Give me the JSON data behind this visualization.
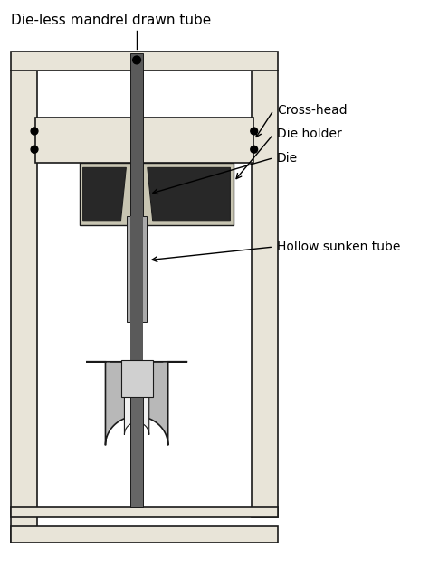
{
  "title": "Die-less mandrel drawn tube",
  "labels": {
    "cross_head": "Cross-head",
    "die_holder": "Die holder",
    "die": "Die",
    "hollow_tube": "Hollow sunken tube"
  },
  "colors": {
    "frame_fill": "#e8e4d8",
    "frame_edge": "#1a1a1a",
    "crosshead_fill": "#e8e4d8",
    "die_holder_fill": "#c8c5b2",
    "die_dark": "#282828",
    "mandrel_dark": "#5a5a5a",
    "mandrel_light": "#aaaaaa",
    "tube_light": "#aaaaaa",
    "clamp_outer": "#b8b8b8",
    "clamp_mid": "#d0d0d0",
    "clamp_white": "#f0f0f0",
    "stem_dark": "#666666",
    "base_fill": "#e8e4d8",
    "dot": "#000000",
    "arrow": "#000000",
    "text": "#000000",
    "background": "#ffffff",
    "line_thin": "#000000"
  },
  "figsize": [
    4.74,
    6.27
  ],
  "dpi": 100
}
